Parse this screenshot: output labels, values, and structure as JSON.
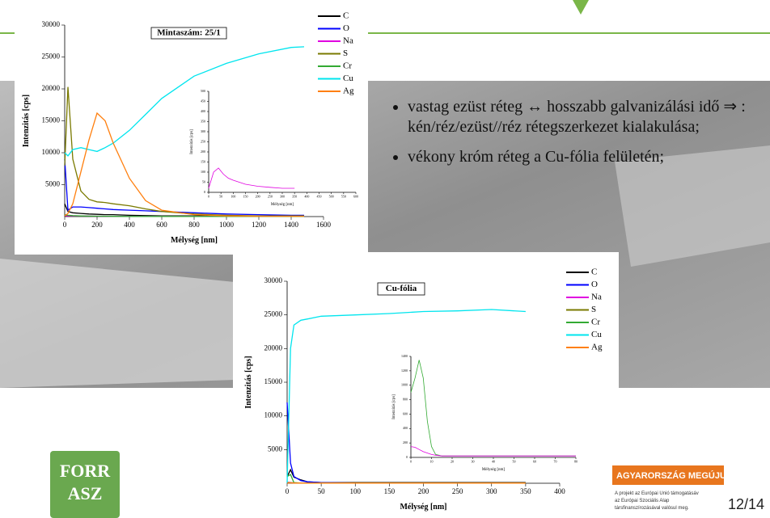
{
  "chart_data": [
    {
      "type": "line",
      "title": "Mintaszám: 25/1",
      "x_label": "Mélység [nm]",
      "y_label": "Intenzitás [cps]",
      "x": [
        0,
        20,
        50,
        100,
        150,
        200,
        250,
        300,
        400,
        500,
        600,
        800,
        1000,
        1200,
        1400,
        1480
      ],
      "series": [
        {
          "name": "C",
          "color": "#000000",
          "values": [
            2000,
            800,
            600,
            500,
            400,
            350,
            300,
            300,
            200,
            150,
            100,
            100,
            100,
            100,
            100,
            100
          ]
        },
        {
          "name": "O",
          "color": "#0000ff",
          "values": [
            9000,
            1000,
            1500,
            1500,
            1400,
            1300,
            1200,
            1100,
            1000,
            900,
            800,
            600,
            400,
            300,
            200,
            200
          ]
        },
        {
          "name": "Na",
          "color": "#e000e0",
          "values": [
            150,
            120,
            100,
            100,
            80,
            60,
            50,
            40,
            30,
            30,
            30,
            30,
            30,
            30,
            30,
            30
          ]
        },
        {
          "name": "S",
          "color": "#7a7a00",
          "values": [
            8000,
            20300,
            9000,
            4000,
            2700,
            2300,
            2200,
            2000,
            1700,
            1200,
            800,
            400,
            200,
            100,
            100,
            100
          ]
        },
        {
          "name": "Cr",
          "color": "#33aa33",
          "values": [
            300,
            200,
            150,
            100,
            80,
            60,
            50,
            40,
            30,
            30,
            30,
            30,
            30,
            30,
            30,
            30
          ]
        },
        {
          "name": "Cu",
          "color": "#00e5ee",
          "values": [
            10000,
            9500,
            10500,
            10800,
            10500,
            10200,
            10800,
            11500,
            13500,
            16000,
            18500,
            22000,
            24000,
            25500,
            26500,
            26600
          ]
        },
        {
          "name": "Ag",
          "color": "#ff7f0e",
          "values": [
            100,
            500,
            2000,
            7000,
            12000,
            16200,
            15000,
            11500,
            6000,
            2500,
            1000,
            300,
            100,
            50,
            50,
            50
          ]
        }
      ],
      "xlim": [
        0,
        1600
      ],
      "xticks": [
        0,
        200,
        400,
        600,
        800,
        1000,
        1200,
        1400,
        1600
      ],
      "ylim": [
        0,
        30000
      ],
      "yticks": [
        5000,
        10000,
        15000,
        20000,
        25000,
        30000
      ]
    },
    {
      "type": "line",
      "x_label": "Mélység [nm]",
      "y_label": "Intenzitás [cps]",
      "x": [
        0,
        20,
        40,
        60,
        80,
        100,
        150,
        200,
        250,
        300,
        350
      ],
      "series": [
        {
          "color": "#e000e0",
          "values": [
            20,
            100,
            120,
            90,
            70,
            60,
            40,
            30,
            25,
            20,
            20
          ]
        }
      ],
      "xlim": [
        0,
        600
      ],
      "xticks": [
        0,
        50,
        100,
        150,
        200,
        250,
        300,
        350,
        400,
        450,
        500,
        550,
        600
      ],
      "ylim": [
        0,
        500
      ],
      "yticks": [
        0,
        50,
        100,
        150,
        200,
        250,
        300,
        350,
        400,
        450,
        500
      ]
    },
    {
      "type": "line",
      "title": "Cu-fólia",
      "x_label": "Mélység [nm]",
      "y_label": "Intenzitás [cps]",
      "x": [
        0,
        5,
        10,
        20,
        30,
        50,
        100,
        150,
        200,
        250,
        300,
        350
      ],
      "series": [
        {
          "name": "C",
          "color": "#000000",
          "values": [
            1000,
            2000,
            900,
            500,
            200,
            100,
            100,
            100,
            100,
            100,
            100,
            100
          ]
        },
        {
          "name": "O",
          "color": "#0000ff",
          "values": [
            12000,
            3000,
            1000,
            400,
            200,
            100,
            50,
            50,
            50,
            50,
            50,
            50
          ]
        },
        {
          "name": "Na",
          "color": "#e000e0",
          "values": [
            150,
            100,
            50,
            30,
            20,
            20,
            20,
            20,
            20,
            20,
            20,
            20
          ]
        },
        {
          "name": "S",
          "color": "#7a7a00",
          "values": [
            100,
            80,
            50,
            30,
            20,
            20,
            20,
            20,
            20,
            20,
            20,
            20
          ]
        },
        {
          "name": "Cr",
          "color": "#33aa33",
          "values": [
            1000,
            1300,
            100,
            30,
            20,
            20,
            20,
            20,
            20,
            20,
            20,
            20
          ]
        },
        {
          "name": "Cu",
          "color": "#00e5ee",
          "values": [
            0,
            20000,
            23500,
            24200,
            24400,
            24800,
            25000,
            25200,
            25500,
            25600,
            25800,
            25500
          ]
        },
        {
          "name": "Ag",
          "color": "#ff7f0e",
          "values": [
            50,
            50,
            40,
            30,
            30,
            30,
            30,
            30,
            30,
            30,
            30,
            30
          ]
        }
      ],
      "xlim": [
        0,
        400
      ],
      "xticks": [
        0,
        50,
        100,
        150,
        200,
        250,
        300,
        350,
        400
      ],
      "ylim": [
        0,
        30000
      ],
      "yticks": [
        5000,
        10000,
        15000,
        20000,
        25000,
        30000
      ]
    },
    {
      "type": "line",
      "x_label": "Mélység [nm]",
      "y_label": "Intenzitás [cps]",
      "x": [
        0,
        2,
        4,
        6,
        8,
        10,
        12,
        15,
        20,
        30,
        40,
        50,
        60,
        70,
        80
      ],
      "series": [
        {
          "color": "#33aa33",
          "values": [
            900,
            1100,
            1350,
            1100,
            500,
            150,
            40,
            20,
            20,
            20,
            20,
            20,
            20,
            20,
            20
          ]
        },
        {
          "color": "#e000e0",
          "values": [
            150,
            140,
            110,
            80,
            60,
            40,
            30,
            20,
            20,
            20,
            20,
            20,
            20,
            20,
            20
          ]
        }
      ],
      "xlim": [
        0,
        80
      ],
      "xticks": [
        0,
        10,
        20,
        30,
        40,
        50,
        60,
        70,
        80
      ],
      "ylim": [
        0,
        1400
      ],
      "yticks": [
        0,
        200,
        400,
        600,
        800,
        1000,
        1200,
        1400
      ]
    }
  ],
  "slide": {
    "bullets": [
      "vastag ezüst réteg ↔ hosszabb galvanizálási idő ⇒ : kén/réz/ezüst//réz rétegszerkezet kialakulása;",
      "vékony króm réteg a Cu-fólia felületén;"
    ],
    "logo": [
      "FORR",
      "ASZ"
    ],
    "banner": "AGYARORSZÁG MEGÚJUL",
    "funding": [
      "A projekt az Európai Unió támogatásáv",
      "az Európai Szociális Alap",
      "társfinanszírozásával valósul meg."
    ],
    "page": "12/14"
  }
}
